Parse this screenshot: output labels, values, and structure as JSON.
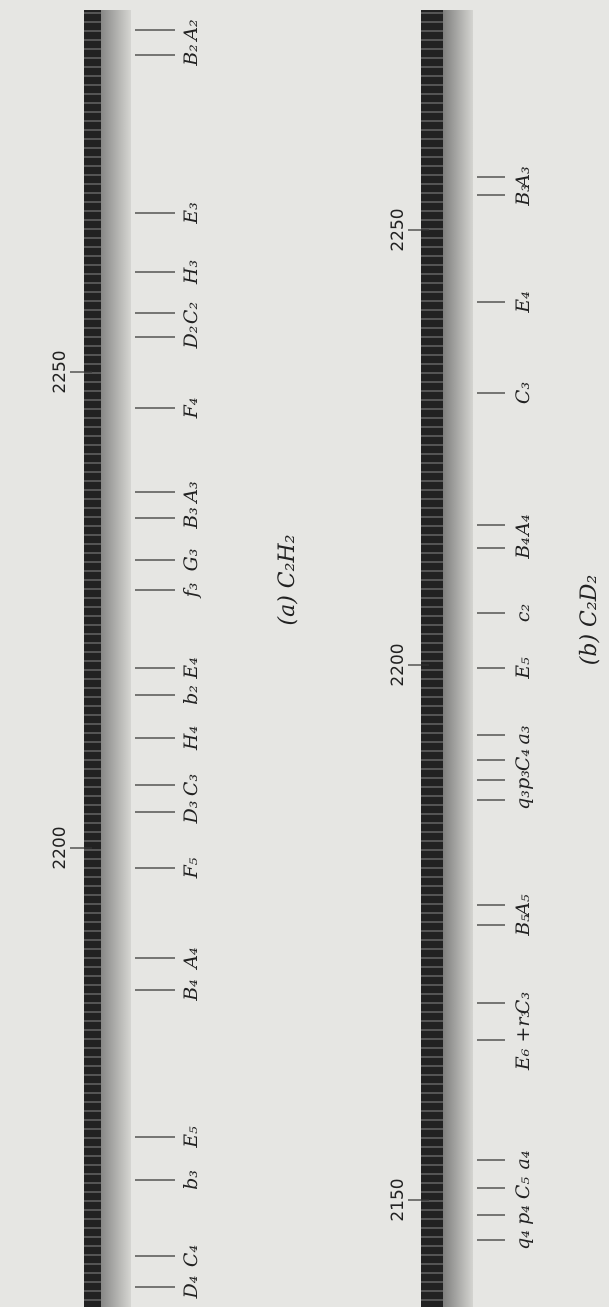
{
  "panels": [
    {
      "caption": "(a) C₂H₂",
      "wavelength_marks": [
        "2250",
        "2200"
      ],
      "lines": [
        {
          "label": "A₂"
        },
        {
          "label": "B₂"
        },
        {
          "label": "E₃"
        },
        {
          "label": "H₃"
        },
        {
          "label": "C₂"
        },
        {
          "label": "D₂"
        },
        {
          "label": "F₄"
        },
        {
          "label": "A₃"
        },
        {
          "label": "B₃"
        },
        {
          "label": "G₃"
        },
        {
          "label": "f₃"
        },
        {
          "label": "E₄"
        },
        {
          "label": "b₂"
        },
        {
          "label": "H₄"
        },
        {
          "label": "C₃"
        },
        {
          "label": "D₃"
        },
        {
          "label": "F₅"
        },
        {
          "label": "A₄"
        },
        {
          "label": "B₄"
        },
        {
          "label": "E₅"
        },
        {
          "label": "b₃"
        },
        {
          "label": "C₄"
        },
        {
          "label": "D₄"
        }
      ]
    },
    {
      "caption": "(b) C₂D₂",
      "wavelength_marks": [
        "2250",
        "2200",
        "2150"
      ],
      "lines": [
        {
          "label": "A₃"
        },
        {
          "label": "B₃"
        },
        {
          "label": "E₄"
        },
        {
          "label": "C₃"
        },
        {
          "label": "A₄"
        },
        {
          "label": "B₄"
        },
        {
          "label": "c₂"
        },
        {
          "label": "E₅"
        },
        {
          "label": "a₃"
        },
        {
          "label": "C₄"
        },
        {
          "label": "p₃"
        },
        {
          "label": "q₃"
        },
        {
          "label": "A₅"
        },
        {
          "label": "B₅"
        },
        {
          "label": "C₃"
        },
        {
          "label": "E₆ +r₃"
        },
        {
          "label": "a₄"
        },
        {
          "label": "C₅"
        },
        {
          "label": "p₄"
        },
        {
          "label": "q₄"
        }
      ]
    }
  ]
}
